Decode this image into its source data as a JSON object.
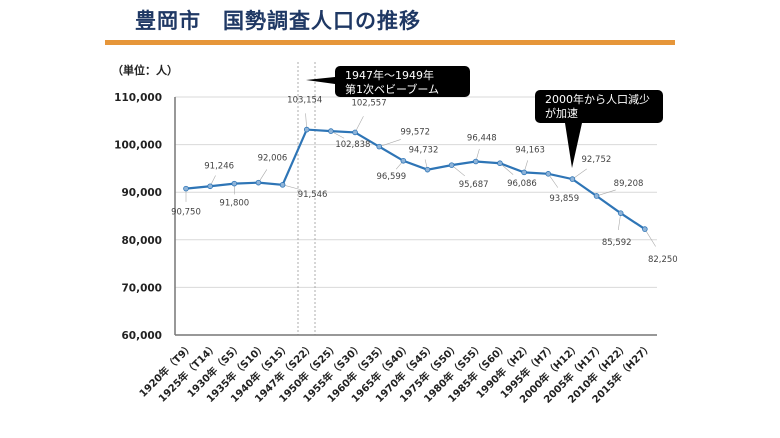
{
  "chart_data": {
    "type": "line",
    "title": "豊岡市　国勢調査人口の推移",
    "ylabel": "（単位：人）",
    "xlabel": "",
    "ylim": [
      60000,
      110000
    ],
    "yticks": [
      "60,000",
      "70,000",
      "80,000",
      "90,000",
      "100,000",
      "110,000"
    ],
    "grid": true,
    "legend": "none",
    "categories": [
      "1920年（T9）",
      "1925年（T14）",
      "1930年（S5）",
      "1935年（S10）",
      "1940年（S15）",
      "1947年（S22）",
      "1950年（S25）",
      "1955年（S30）",
      "1960年（S35）",
      "1965年（S40）",
      "1970年（S45）",
      "1975年（S50）",
      "1980年（S55）",
      "1985年（S60）",
      "1990年（H2）",
      "1995年（H7）",
      "2000年（H12）",
      "2005年（H17）",
      "2010年（H22）",
      "2015年（H27）"
    ],
    "series": [
      {
        "values": [
          90750,
          91246,
          91800,
          92006,
          91546,
          103154,
          102838,
          102557,
          99572,
          96599,
          94732,
          95687,
          96448,
          96086,
          94163,
          93859,
          92752,
          89208,
          85592,
          82250
        ],
        "labels": [
          "90,750",
          "91,246",
          "91,800",
          "92,006",
          "91,546",
          "103,154",
          "102,838",
          "102,557",
          "99,572",
          "96,599",
          "94,732",
          "95,687",
          "96,448",
          "96,086",
          "94,163",
          "93,859",
          "92,752",
          "89,208",
          "85,592",
          "82,250"
        ],
        "color": "#2e75b6"
      }
    ],
    "annotations": [
      {
        "text": [
          "1947年～1949年",
          "第1次ベビーブーム"
        ],
        "target": "1947年（S22）"
      },
      {
        "text": [
          "2000年から人口減少",
          "が加速"
        ],
        "target": "2000年（H12）"
      }
    ]
  }
}
